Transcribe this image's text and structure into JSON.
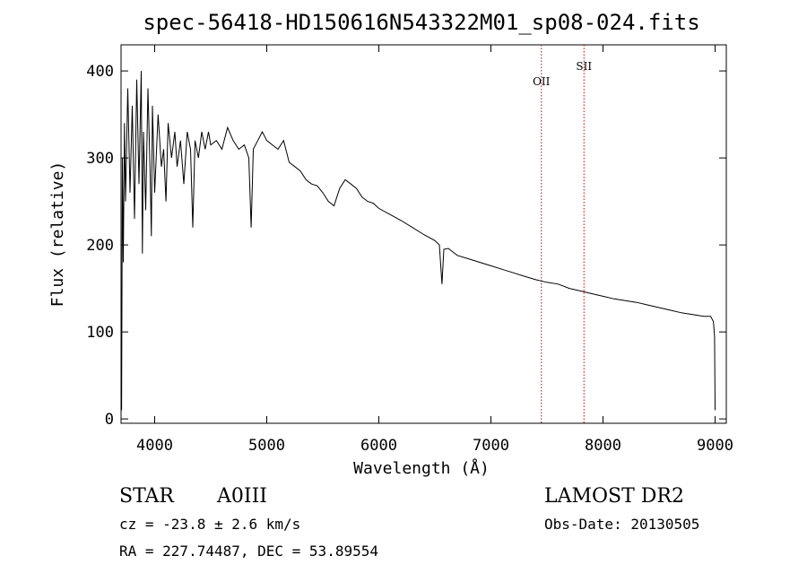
{
  "chart_data": {
    "type": "line",
    "title": "spec-56418-HD150616N543322M01_sp08-024.fits",
    "xlabel": "Wavelength (Å)",
    "ylabel": "Flux (relative)",
    "xlim": [
      3700,
      9100
    ],
    "ylim": [
      -5,
      430
    ],
    "xticks": [
      4000,
      5000,
      6000,
      7000,
      8000,
      9000
    ],
    "yticks": [
      0,
      100,
      200,
      300,
      400
    ],
    "line_color": "#000000",
    "marker_color": "#cc0000",
    "series": [
      {
        "x": [
          3700,
          3705,
          3712,
          3720,
          3730,
          3740,
          3760,
          3780,
          3800,
          3820,
          3840,
          3860,
          3880,
          3890,
          3900,
          3920,
          3940,
          3960,
          3970,
          3980,
          4000,
          4030,
          4060,
          4080,
          4101,
          4120,
          4150,
          4180,
          4200,
          4230,
          4260,
          4290,
          4320,
          4340,
          4360,
          4390,
          4420,
          4450,
          4480,
          4500,
          4550,
          4600,
          4650,
          4700,
          4750,
          4800,
          4840,
          4861,
          4880,
          4920,
          4960,
          5000,
          5050,
          5100,
          5150,
          5200,
          5250,
          5300,
          5350,
          5400,
          5450,
          5500,
          5550,
          5600,
          5650,
          5700,
          5750,
          5800,
          5850,
          5900,
          5950,
          6000,
          6100,
          6200,
          6300,
          6400,
          6500,
          6540,
          6563,
          6580,
          6620,
          6700,
          6800,
          6900,
          7000,
          7100,
          7200,
          7300,
          7400,
          7500,
          7600,
          7700,
          7800,
          7900,
          8000,
          8100,
          8200,
          8300,
          8400,
          8500,
          8600,
          8700,
          8800,
          8900,
          8960,
          8985,
          8995,
          9000
        ],
        "y": [
          150,
          10,
          300,
          180,
          340,
          250,
          380,
          260,
          360,
          230,
          390,
          270,
          400,
          190,
          330,
          240,
          380,
          280,
          210,
          360,
          260,
          350,
          290,
          310,
          250,
          340,
          300,
          330,
          290,
          320,
          270,
          330,
          310,
          220,
          320,
          300,
          330,
          310,
          330,
          315,
          320,
          310,
          335,
          320,
          310,
          315,
          300,
          220,
          310,
          320,
          330,
          320,
          315,
          310,
          320,
          295,
          290,
          285,
          275,
          270,
          268,
          260,
          250,
          245,
          265,
          275,
          270,
          265,
          255,
          250,
          248,
          242,
          235,
          228,
          220,
          212,
          205,
          200,
          155,
          195,
          196,
          188,
          184,
          180,
          176,
          172,
          168,
          164,
          160,
          157,
          155,
          150,
          147,
          144,
          141,
          138,
          136,
          134,
          131,
          128,
          125,
          122,
          120,
          118,
          118,
          112,
          95,
          10
        ]
      }
    ],
    "line_markers": [
      {
        "label": "OII",
        "x": 7450
      },
      {
        "label": "SII",
        "x": 7830
      }
    ]
  },
  "footer": {
    "object_type": "STAR",
    "subclass": "A0III",
    "survey": "LAMOST DR2",
    "cz": "cz = -23.8 ± 2.6 km/s",
    "obs_date": "Obs-Date: 20130505",
    "coords": "RA = 227.74487, DEC =  53.89554"
  }
}
